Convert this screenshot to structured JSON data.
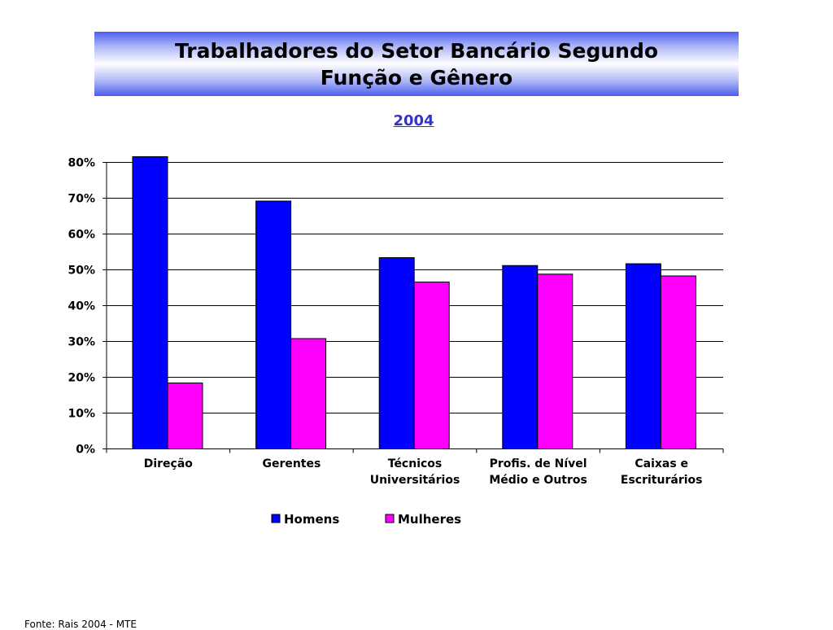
{
  "slide": {
    "title_line1": "Trabalhadores do Setor Bancário Segundo",
    "title_line2": "Função e Gênero",
    "subtitle": "2004",
    "footer": "Fonte: Rais 2004 - MTE"
  },
  "chart_data": {
    "type": "bar",
    "title": "",
    "xlabel": "",
    "ylabel": "",
    "categories": [
      [
        "Direção"
      ],
      [
        "Gerentes"
      ],
      [
        "Técnicos",
        "Universitários"
      ],
      [
        "Profis. de Nível",
        "Médio e Outros"
      ],
      [
        "Caixas e",
        "Escriturários"
      ]
    ],
    "series": [
      {
        "name": "Homens",
        "color": "#0000ff",
        "values": [
          81.6,
          69.2,
          53.4,
          51.2,
          51.7
        ]
      },
      {
        "name": "Mulheres",
        "color": "#ff00ff",
        "values": [
          18.4,
          30.8,
          46.6,
          48.8,
          48.3
        ]
      }
    ],
    "ylim": [
      0,
      80
    ],
    "yticks": [
      0,
      10,
      20,
      30,
      40,
      50,
      60,
      70,
      80
    ],
    "ytick_suffix": "%",
    "grid": true,
    "legend_position": "bottom"
  }
}
